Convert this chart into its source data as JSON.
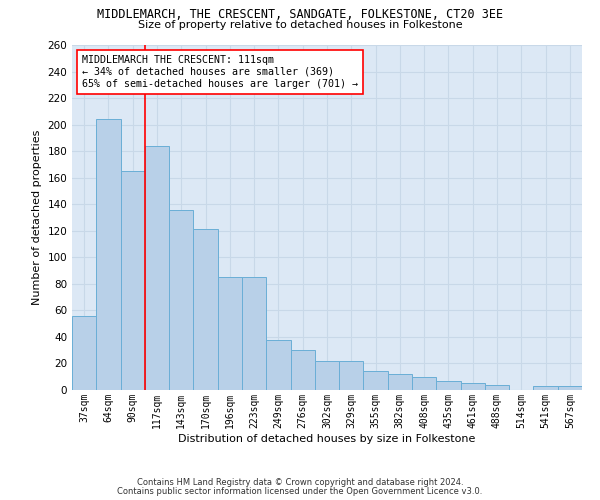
{
  "title": "MIDDLEMARCH, THE CRESCENT, SANDGATE, FOLKESTONE, CT20 3EE",
  "subtitle": "Size of property relative to detached houses in Folkestone",
  "xlabel": "Distribution of detached houses by size in Folkestone",
  "ylabel": "Number of detached properties",
  "categories": [
    "37sqm",
    "64sqm",
    "90sqm",
    "117sqm",
    "143sqm",
    "170sqm",
    "196sqm",
    "223sqm",
    "249sqm",
    "276sqm",
    "302sqm",
    "329sqm",
    "355sqm",
    "382sqm",
    "408sqm",
    "435sqm",
    "461sqm",
    "488sqm",
    "514sqm",
    "541sqm",
    "567sqm"
  ],
  "values": [
    56,
    204,
    165,
    184,
    136,
    121,
    85,
    85,
    38,
    30,
    22,
    22,
    14,
    12,
    10,
    7,
    5,
    4,
    0,
    3,
    3
  ],
  "bar_color": "#b8d0e8",
  "bar_edge_color": "#6aaed6",
  "grid_color": "#c8d8e8",
  "background_color": "#dce8f5",
  "redline_x": 2.5,
  "annotation_text": "MIDDLEMARCH THE CRESCENT: 111sqm\n← 34% of detached houses are smaller (369)\n65% of semi-detached houses are larger (701) →",
  "footnote1": "Contains HM Land Registry data © Crown copyright and database right 2024.",
  "footnote2": "Contains public sector information licensed under the Open Government Licence v3.0.",
  "ylim": [
    0,
    260
  ],
  "yticks": [
    0,
    20,
    40,
    60,
    80,
    100,
    120,
    140,
    160,
    180,
    200,
    220,
    240,
    260
  ]
}
